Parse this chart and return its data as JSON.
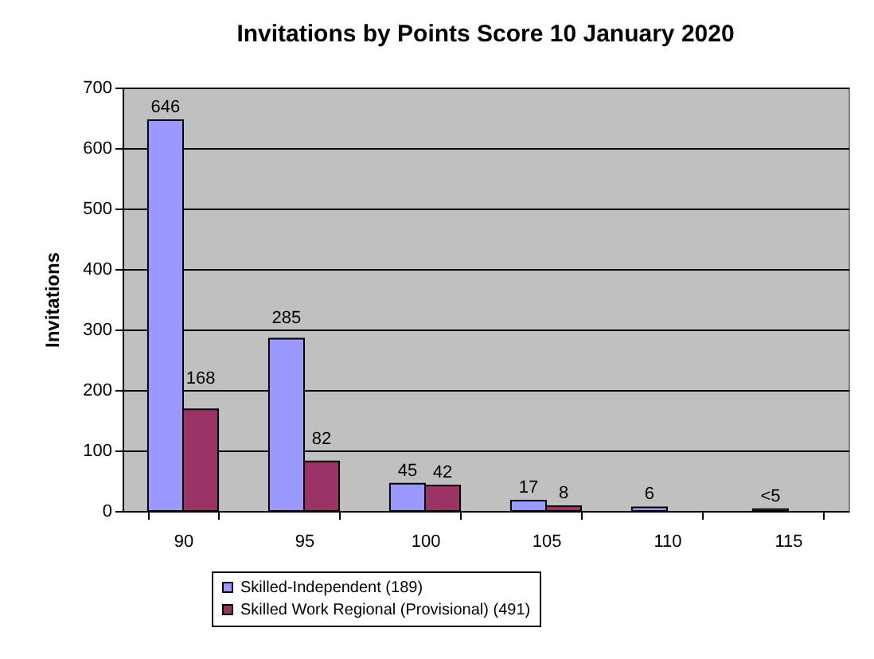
{
  "chart_data": {
    "type": "bar",
    "title": "Invitations by Points Score 10 January 2020",
    "ylabel": "Invitations",
    "categories": [
      "90",
      "95",
      "100",
      "105",
      "110",
      "115"
    ],
    "series": [
      {
        "name": "Skilled-Independent (189)",
        "color": "#9999ff",
        "values": [
          646,
          285,
          45,
          17,
          6,
          3
        ],
        "value_labels": [
          "646",
          "285",
          "45",
          "17",
          "6",
          "<5"
        ]
      },
      {
        "name": "Skilled Work Regional (Provisional) (491)",
        "color": "#993366",
        "values": [
          168,
          82,
          42,
          8,
          null,
          null
        ],
        "value_labels": [
          "168",
          "82",
          "42",
          "8",
          null,
          null
        ]
      }
    ],
    "ylim": [
      0,
      700
    ],
    "yticks": [
      0,
      100,
      200,
      300,
      400,
      500,
      600,
      700
    ],
    "grid": "y",
    "legend": "bottom"
  }
}
